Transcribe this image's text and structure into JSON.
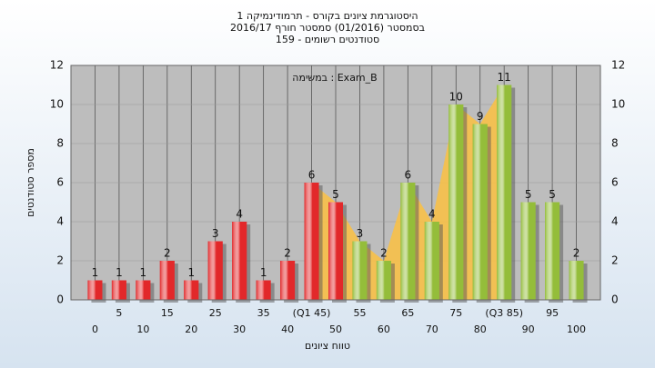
{
  "chart_data": {
    "type": "bar",
    "title": [
      "היסטוגרמת ציונים בקורס - תרמודינמיקה 1",
      "בסמסטר  (01/2016)  סמסטר חורף 2016/17",
      "סטודנטים רשומים - 159"
    ],
    "legend": "במשימה : Exam_B",
    "xlabel": "טווח ציונים",
    "ylabel": "מספר סטודנטים",
    "categories": [
      "0",
      "5",
      "10",
      "15",
      "20",
      "25",
      "30",
      "35",
      "40",
      "(Q1 45)",
      "50",
      "55",
      "60",
      "65",
      "70",
      "75",
      "80",
      "(Q3 85)",
      "90",
      "95",
      "100"
    ],
    "values": [
      1,
      1,
      1,
      2,
      1,
      3,
      4,
      1,
      2,
      6,
      5,
      3,
      2,
      6,
      4,
      10,
      9,
      11,
      5,
      5,
      2
    ],
    "colors": [
      "#e2282a",
      "#e2282a",
      "#e2282a",
      "#e2282a",
      "#e2282a",
      "#e2282a",
      "#e2282a",
      "#e2282a",
      "#e2282a",
      "#e2282a",
      "#e2282a",
      "#94bd3a",
      "#94bd3a",
      "#94bd3a",
      "#94bd3a",
      "#94bd3a",
      "#94bd3a",
      "#94bd3a",
      "#94bd3a",
      "#94bd3a",
      "#94bd3a"
    ],
    "ylim": [
      0,
      12
    ],
    "yticks": [
      0,
      2,
      4,
      6,
      8,
      10,
      12
    ],
    "grid": true
  }
}
